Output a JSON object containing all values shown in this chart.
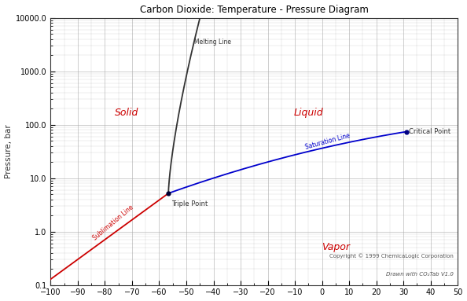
{
  "title": "Carbon Dioxide: Temperature - Pressure Diagram",
  "xlabel": "",
  "ylabel": "Pressure, bar",
  "xlim": [
    -100,
    50
  ],
  "ylim": [
    0.1,
    10000
  ],
  "xticks": [
    -100,
    -90,
    -80,
    -70,
    -60,
    -50,
    -40,
    -30,
    -20,
    -10,
    0,
    10,
    20,
    30,
    40,
    50
  ],
  "background_color": "#ffffff",
  "grid_color": "#aaaaaa",
  "title_color": "#000000",
  "triple_point": [
    -56.6,
    5.18
  ],
  "critical_point": [
    31.1,
    73.8
  ],
  "sublimation_color": "#cc0000",
  "saturation_color": "#0000cc",
  "melting_color": "#333333",
  "label_color": "#cc0000",
  "point_color": "#000033",
  "annotation_color": "#333333",
  "copyright_text": "Copyright © 1999 ChemicaLogic Corporation",
  "drawn_text": "Drawn with CO₂Tab V1.0"
}
